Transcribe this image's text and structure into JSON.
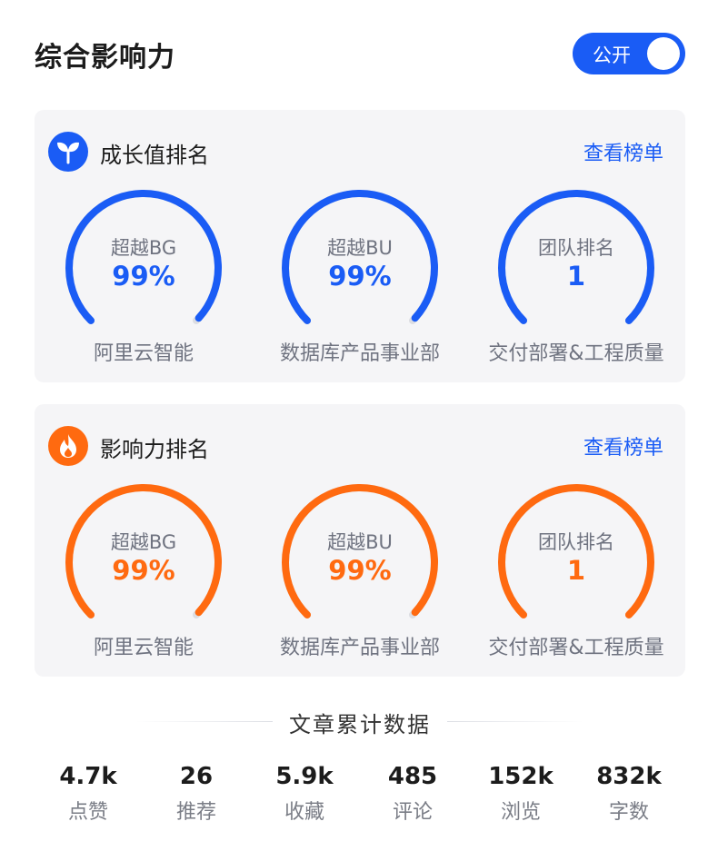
{
  "header": {
    "title": "综合影响力",
    "toggle_label": "公开"
  },
  "growth": {
    "title": "成长值排名",
    "link": "查看榜单",
    "icon": "sprout-icon",
    "color": "#1a5cf5",
    "gauges": [
      {
        "label": "超越BG",
        "value": "99%",
        "caption": "阿里云智能",
        "level": 0.99
      },
      {
        "label": "超越BU",
        "value": "99%",
        "caption": "数据库产品事业部",
        "level": 0.99
      },
      {
        "label": "团队排名",
        "value": "1",
        "caption": "交付部署&工程质量",
        "level": 1.0
      }
    ]
  },
  "influence": {
    "title": "影响力排名",
    "link": "查看榜单",
    "icon": "flame-icon",
    "color": "#ff6a10",
    "gauges": [
      {
        "label": "超越BG",
        "value": "99%",
        "caption": "阿里云智能",
        "level": 0.99
      },
      {
        "label": "超越BU",
        "value": "99%",
        "caption": "数据库产品事业部",
        "level": 0.99
      },
      {
        "label": "团队排名",
        "value": "1",
        "caption": "交付部署&工程质量",
        "level": 1.0
      }
    ]
  },
  "articles": {
    "title": "文章累计数据",
    "stats": [
      {
        "value": "4.7k",
        "label": "点赞"
      },
      {
        "value": "26",
        "label": "推荐"
      },
      {
        "value": "5.9k",
        "label": "收藏"
      },
      {
        "value": "485",
        "label": "评论"
      },
      {
        "value": "152k",
        "label": "浏览"
      },
      {
        "value": "832k",
        "label": "字数"
      }
    ]
  }
}
